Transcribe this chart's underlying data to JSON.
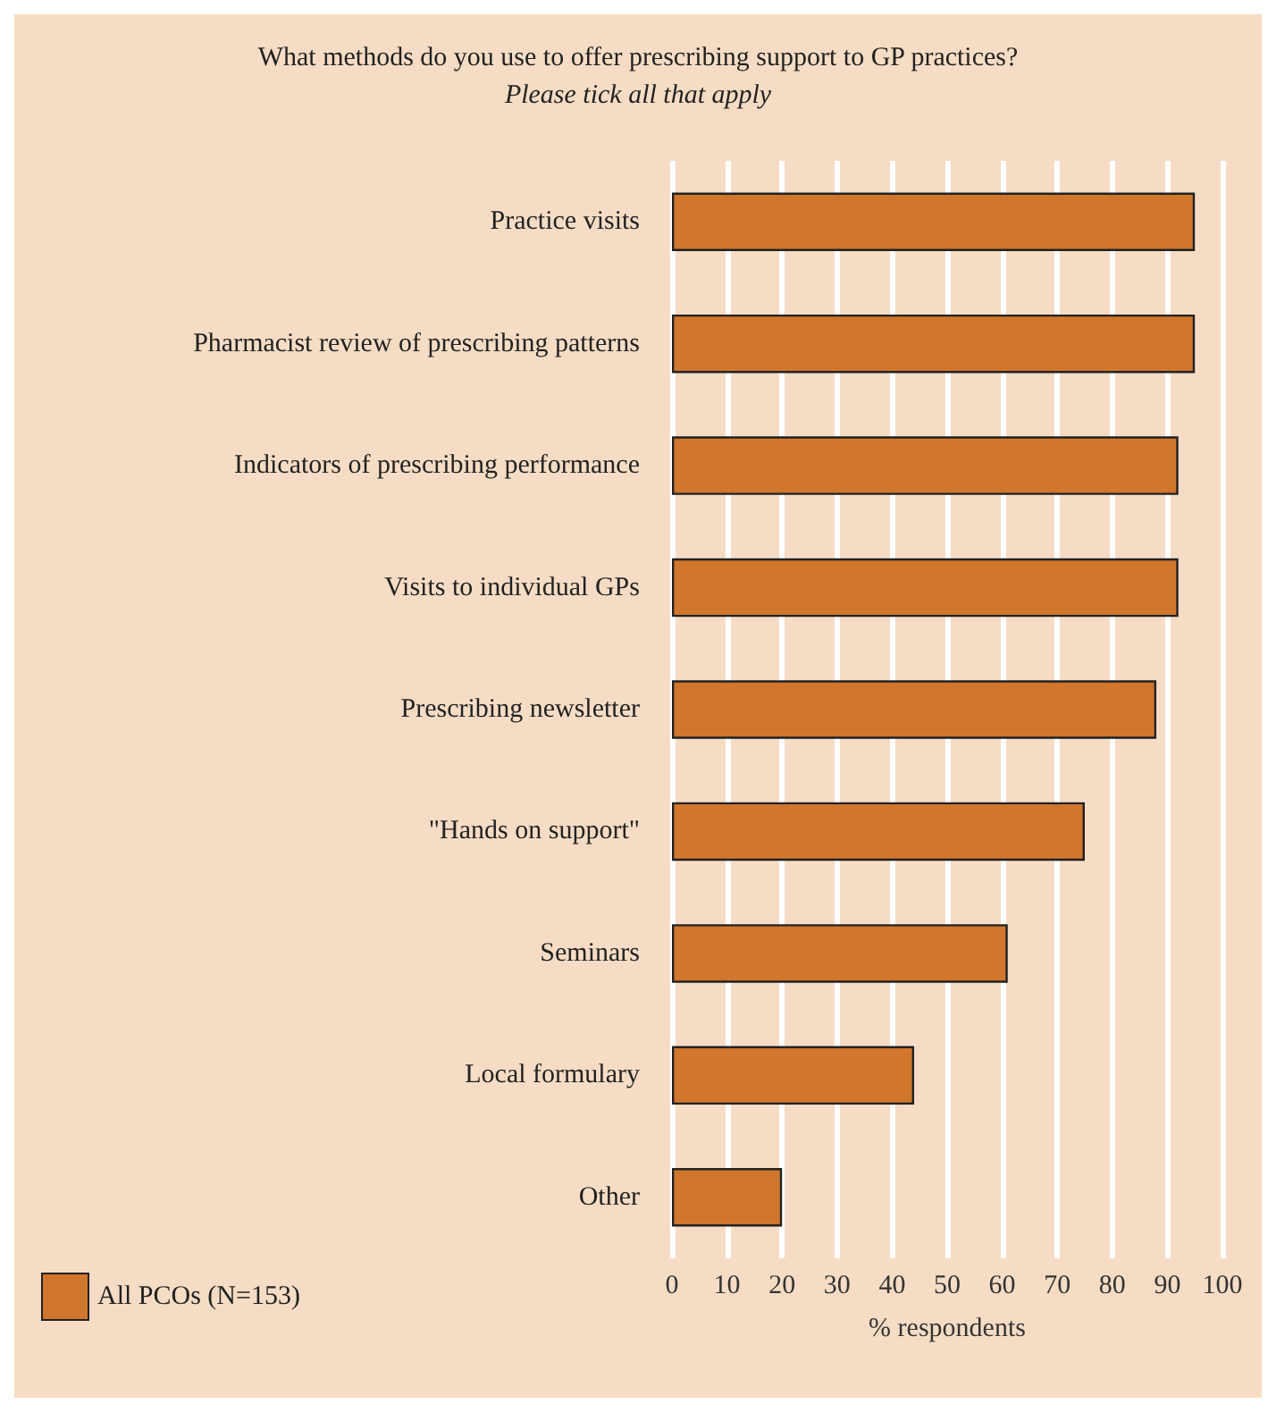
{
  "chart_data": {
    "type": "bar",
    "orientation": "horizontal",
    "title": "What methods do you use to offer prescribing support to GP practices?",
    "subtitle": "Please tick all that apply",
    "categories": [
      "Practice visits",
      "Pharmacist review of prescribing patterns",
      "Indicators of prescribing performance",
      "Visits to individual GPs",
      "Prescribing newsletter",
      "\"Hands on support\"",
      "Seminars",
      "Local formulary",
      "Other"
    ],
    "series": [
      {
        "name": "All PCOs (N=153)",
        "color": "#d0762d",
        "values": [
          95,
          95,
          92,
          92,
          88,
          75,
          61,
          44,
          20
        ]
      }
    ],
    "xlabel": "% respondents",
    "xlim": [
      0,
      100
    ],
    "xticks": [
      0,
      10,
      20,
      30,
      40,
      50,
      60,
      70,
      80,
      90,
      100
    ],
    "grid": "x",
    "legend": "bottom left"
  }
}
